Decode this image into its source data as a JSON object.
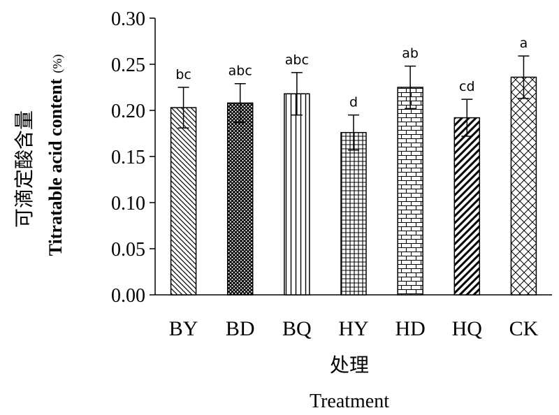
{
  "chart_data": {
    "type": "bar",
    "categories": [
      "BY",
      "BD",
      "BQ",
      "HY",
      "HD",
      "HQ",
      "CK"
    ],
    "values": [
      0.203,
      0.208,
      0.218,
      0.176,
      0.225,
      0.192,
      0.236
    ],
    "errors": [
      0.022,
      0.021,
      0.023,
      0.019,
      0.023,
      0.02,
      0.023
    ],
    "significance_letters": [
      "bc",
      "abc",
      "abc",
      "d",
      "ab",
      "cd",
      "a"
    ],
    "patterns": [
      "backslash",
      "crosshatch-dense",
      "vertical",
      "grid",
      "brick",
      "slash-thick",
      "crosshatch-wide"
    ],
    "ylim": [
      0.0,
      0.3
    ],
    "yticks": [
      "0.00",
      "0.05",
      "0.10",
      "0.15",
      "0.20",
      "0.25",
      "0.30"
    ],
    "ylabel_cn": "可滴定酸含量",
    "ylabel_en": "Titratable acid content",
    "ylabel_unit": "(%)",
    "xlabel_cn": "处理",
    "xlabel_en": "Treatment",
    "grid": false,
    "legend": "none"
  }
}
